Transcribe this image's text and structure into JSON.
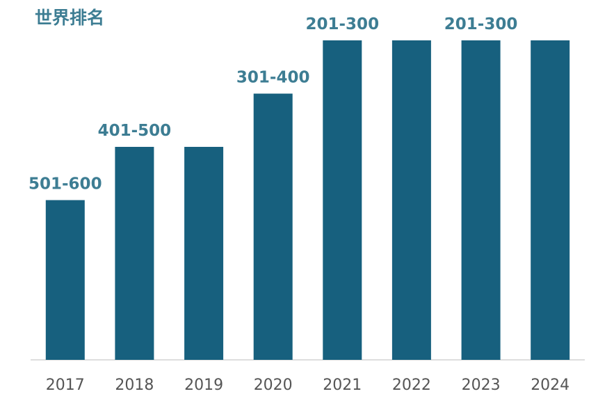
{
  "chart_data": {
    "type": "bar",
    "title": "世界排名",
    "xlabel": "",
    "ylabel": "",
    "categories": [
      "2017",
      "2018",
      "2019",
      "2020",
      "2021",
      "2022",
      "2023",
      "2024"
    ],
    "values": [
      3,
      4,
      4,
      5,
      6,
      6,
      6,
      6
    ],
    "ylim": [
      0,
      6
    ],
    "data_labels": [
      "501-600",
      "401-500",
      "",
      "301-400",
      "201-300",
      "",
      "201-300",
      ""
    ],
    "grid": false,
    "legend": "none",
    "colors": {
      "bar": "#17607e",
      "label": "#3d7d93",
      "tick": "#555555",
      "axis": "#d4d4d4"
    }
  }
}
